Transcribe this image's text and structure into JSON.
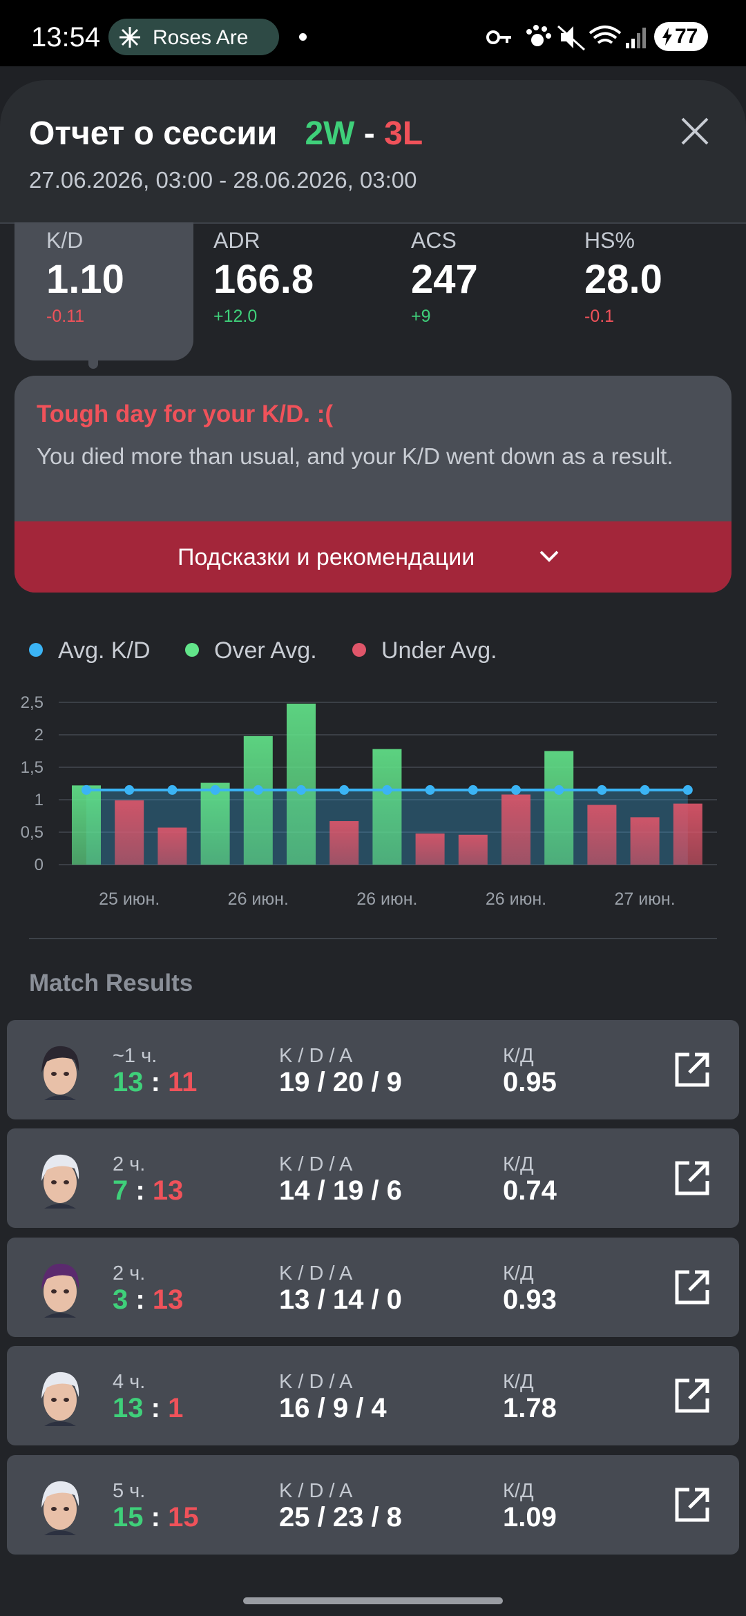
{
  "status_bar": {
    "time": "13:54",
    "notification": "Roses Are",
    "battery": "77"
  },
  "header": {
    "title": "Отчет о сессии",
    "wins": "2W",
    "separator": "-",
    "losses": "3L",
    "date_range": "27.06.2026, 03:00 - 28.06.2026, 03:00"
  },
  "stats": [
    {
      "label": "K/D",
      "value": "1.10",
      "delta": "-0.11",
      "delta_color": "#f0525a",
      "selected": true
    },
    {
      "label": "ADR",
      "value": "166.8",
      "delta": "+12.0",
      "delta_color": "#3fd07a",
      "selected": false
    },
    {
      "label": "ACS",
      "value": "247",
      "delta": "+9",
      "delta_color": "#3fd07a",
      "selected": false
    },
    {
      "label": "HS%",
      "value": "28.0",
      "delta": "-0.1",
      "delta_color": "#f0525a",
      "selected": false
    }
  ],
  "insight": {
    "title": "Tough day for your K/D. :(",
    "body": "You died more than usual, and your K/D went down as a result.",
    "button": "Подсказки и рекомендации"
  },
  "chart_data": {
    "type": "bar",
    "categories": [
      null,
      "25 июн.",
      null,
      null,
      "26 июн.",
      null,
      null,
      "26 июн.",
      null,
      null,
      "26 июн.",
      null,
      null,
      "27 июн.",
      null
    ],
    "series": [
      {
        "name": "Avg. K/D",
        "type": "line",
        "color": "#3bb4f5",
        "values": [
          1.15,
          1.15,
          1.15,
          1.15,
          1.15,
          1.15,
          1.15,
          1.15,
          1.15,
          1.15,
          1.15,
          1.15,
          1.15,
          1.15,
          1.15
        ]
      },
      {
        "name": "Over Avg.",
        "type": "bar",
        "color": "#62e58a",
        "values": [
          1.22,
          null,
          null,
          1.26,
          1.98,
          2.48,
          null,
          1.78,
          null,
          null,
          null,
          1.75,
          null,
          null,
          null
        ]
      },
      {
        "name": "Under Avg.",
        "type": "bar",
        "color": "#e0566a",
        "values": [
          null,
          0.99,
          0.57,
          null,
          null,
          null,
          0.67,
          null,
          0.48,
          0.46,
          1.08,
          null,
          0.92,
          0.73,
          0.94
        ]
      }
    ],
    "ylim": [
      0,
      2.5
    ],
    "yticks": [
      0,
      {
        "value": 0.5,
        "label": "0,5"
      },
      1,
      {
        "value": 1.5,
        "label": "1,5"
      },
      2,
      {
        "value": 2.5,
        "label": "2,5"
      }
    ],
    "grid": true
  },
  "matches": {
    "title": "Match Results",
    "score_separator": ":",
    "kda_label": "K / D / A",
    "kd_label": "К/Д",
    "rows": [
      {
        "time": "~1 ч.",
        "score_won": "13",
        "score_lost": "11",
        "kda": "19 / 20 / 9",
        "kd": "0.95"
      },
      {
        "time": "2 ч.",
        "score_won": "7",
        "score_lost": "13",
        "kda": "14 / 19 / 6",
        "kd": "0.74"
      },
      {
        "time": "2 ч.",
        "score_won": "3",
        "score_lost": "13",
        "kda": "13 / 14 / 0",
        "kd": "0.93"
      },
      {
        "time": "4 ч.",
        "score_won": "13",
        "score_lost": "1",
        "kda": "16 / 9 / 4",
        "kd": "1.78"
      },
      {
        "time": "5 ч.",
        "score_won": "15",
        "score_lost": "15",
        "kda": "25 / 23 / 8",
        "kd": "1.09"
      }
    ]
  }
}
